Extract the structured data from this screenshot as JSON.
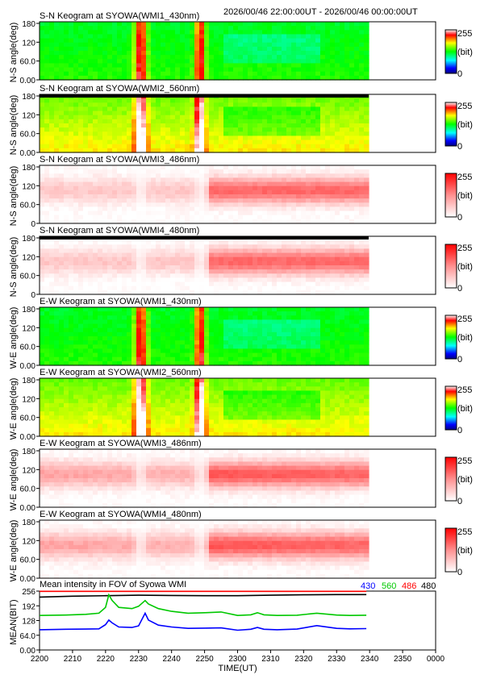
{
  "header": {
    "time_range": "2026/00/46 22:00:00UT - 2026/00/46 00:00:00UT"
  },
  "colors": {
    "c430": "#0000ff",
    "c560": "#00c800",
    "c486": "#ff0000",
    "c480": "#000000",
    "frame": "#000000"
  },
  "keograms": [
    {
      "title": "S-N Keogram at SYOWA(WMI1_430nm)",
      "ylabel": "N-S angle(deg)",
      "yticks": [
        "0.00",
        "60.0",
        "120",
        "180"
      ],
      "colormap": "rainbow",
      "cb_max": "255",
      "cb_unit": "(bit)",
      "cb_min": "0"
    },
    {
      "title": "S-N Keogram at SYOWA(WMI2_560nm)",
      "ylabel": "N-S angle(deg)",
      "yticks": [
        "0.00",
        "60.0",
        "120",
        "180"
      ],
      "colormap": "rainbow",
      "cb_max": "255",
      "cb_unit": "(bit)",
      "cb_min": "0"
    },
    {
      "title": "S-N Keogram at SYOWA(WMI3_486nm)",
      "ylabel": "N-S angle(deg)",
      "yticks": [
        "0",
        "60.0",
        "120",
        "180"
      ],
      "colormap": "red",
      "cb_max": "255",
      "cb_unit": "(bit)",
      "cb_min": "0"
    },
    {
      "title": "S-N Keogram at SYOWA(WMI4_480nm)",
      "ylabel": "N-S angle(deg)",
      "yticks": [
        "0",
        "60.0",
        "120",
        "180"
      ],
      "colormap": "red",
      "cb_max": "255",
      "cb_unit": "(bit)",
      "cb_min": "0"
    },
    {
      "title": "E-W Keogram at SYOWA(WMI1_430nm)",
      "ylabel": "W-E angle(deg)",
      "yticks": [
        "0.00",
        "60.0",
        "120",
        "180"
      ],
      "colormap": "rainbow",
      "cb_max": "255",
      "cb_unit": "(bit)",
      "cb_min": "0"
    },
    {
      "title": "E-W Keogram at SYOWA(WMI2_560nm)",
      "ylabel": "W-E angle(deg)",
      "yticks": [
        "0.00",
        "60.0",
        "120",
        "180"
      ],
      "colormap": "rainbow",
      "cb_max": "255",
      "cb_unit": "(bit)",
      "cb_min": "0"
    },
    {
      "title": "E-W Keogram at SYOWA(WMI3_486nm)",
      "ylabel": "W-E angle(deg)",
      "yticks": [
        "0.00",
        "60.0",
        "120",
        "180"
      ],
      "colormap": "red",
      "cb_max": "255",
      "cb_unit": "(bit)",
      "cb_min": "0"
    },
    {
      "title": "E-W Keogram at SYOWA(WMI4_480nm)",
      "ylabel": "W-E angle(deg)",
      "yticks": [
        "0.00",
        "60.0",
        "120",
        "180"
      ],
      "colormap": "red",
      "cb_max": "255",
      "cb_unit": "(bit)",
      "cb_min": "0"
    }
  ],
  "chart_data": {
    "type": "line",
    "title": "Mean intensity in FOV of Syowa WMI",
    "xlabel": "TIME(UT)",
    "ylabel": "MEAN(BIT)",
    "x_ticks": [
      "2200",
      "2210",
      "2220",
      "2230",
      "2240",
      "2250",
      "2300",
      "2310",
      "2320",
      "2330",
      "2340",
      "2350",
      "0000"
    ],
    "y_ticks": [
      "0.00",
      "64.0",
      "128",
      "192",
      "256"
    ],
    "ylim": [
      0,
      256
    ],
    "x_minutes_range": [
      0,
      120
    ],
    "data_end_minute": 99,
    "legend_labels": [
      "430",
      "560",
      "486",
      "480"
    ],
    "series": [
      {
        "name": "486",
        "color": "#ff0000",
        "x": [
          0,
          20,
          40,
          60,
          80,
          99
        ],
        "y": [
          255,
          255,
          255,
          255,
          255,
          255
        ]
      },
      {
        "name": "480",
        "color": "#000000",
        "x": [
          0,
          10,
          20,
          30,
          40,
          50,
          60,
          70,
          80,
          90,
          99
        ],
        "y": [
          230,
          234,
          236,
          238,
          237,
          236,
          236,
          238,
          240,
          241,
          241
        ]
      },
      {
        "name": "560",
        "color": "#00c800",
        "x": [
          0,
          8,
          14,
          18,
          20,
          21,
          22,
          24,
          28,
          30,
          32,
          33,
          36,
          40,
          45,
          50,
          55,
          60,
          64,
          66,
          68,
          72,
          78,
          84,
          90,
          94,
          99
        ],
        "y": [
          150,
          152,
          155,
          160,
          185,
          240,
          215,
          185,
          180,
          190,
          215,
          200,
          180,
          168,
          160,
          162,
          165,
          150,
          153,
          162,
          153,
          150,
          151,
          160,
          152,
          150,
          151
        ]
      },
      {
        "name": "430",
        "color": "#0000ff",
        "x": [
          0,
          8,
          14,
          18,
          20,
          21,
          22,
          24,
          28,
          30,
          32,
          33,
          36,
          40,
          45,
          50,
          55,
          60,
          64,
          66,
          68,
          72,
          78,
          84,
          90,
          94,
          99
        ],
        "y": [
          88,
          90,
          91,
          92,
          110,
          130,
          118,
          100,
          98,
          105,
          160,
          130,
          108,
          100,
          94,
          95,
          96,
          86,
          90,
          98,
          90,
          88,
          91,
          106,
          94,
          92,
          93
        ]
      }
    ]
  }
}
